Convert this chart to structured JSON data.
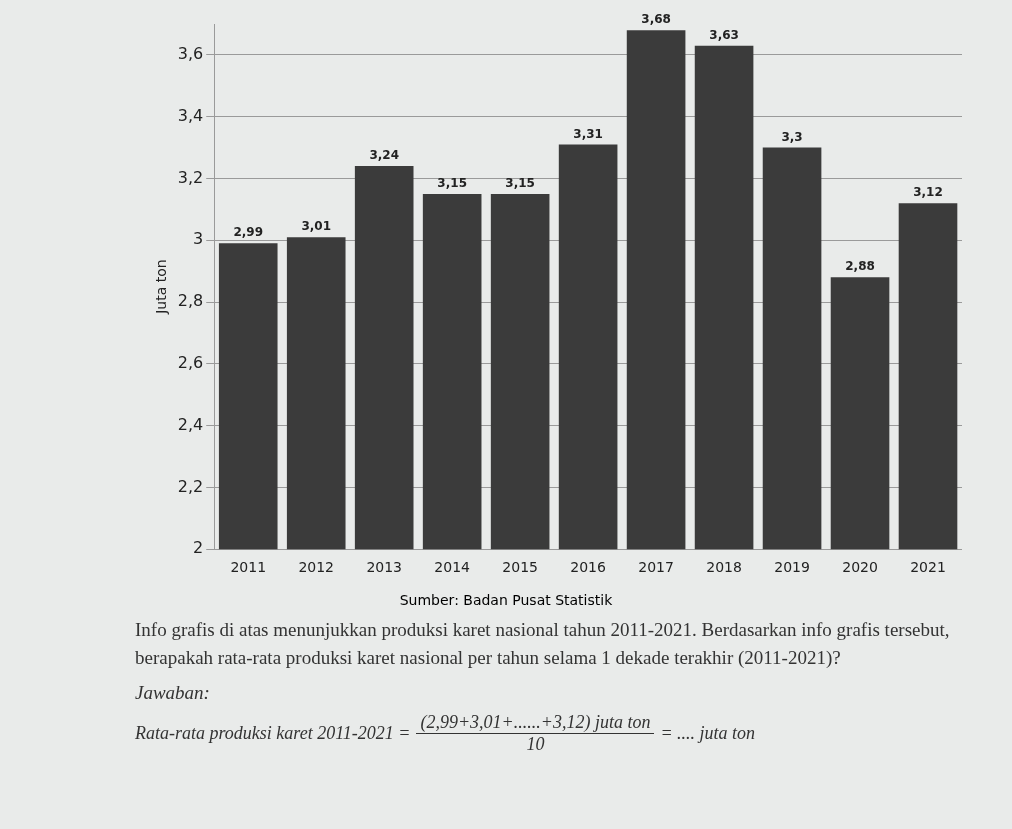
{
  "chart_data": {
    "type": "bar",
    "ylabel": "Juta ton",
    "categories": [
      "2011",
      "2012",
      "2013",
      "2014",
      "2015",
      "2016",
      "2017",
      "2018",
      "2019",
      "2020",
      "2021"
    ],
    "values": [
      2.99,
      3.01,
      3.24,
      3.15,
      3.15,
      3.31,
      3.68,
      3.63,
      3.3,
      2.88,
      3.12
    ],
    "value_labels": [
      "2,99",
      "3,01",
      "3,24",
      "3,15",
      "3,15",
      "3,31",
      "3,68",
      "3,63",
      "3,3",
      "2,88",
      "3,12"
    ],
    "color": "#3b3b3b",
    "ylim": [
      2,
      3.7
    ],
    "yticks": [
      2,
      {
        "value": 2.2,
        "label": "2,2"
      },
      {
        "value": 2.4,
        "label": "2,4"
      },
      {
        "value": 2.6,
        "label": "2,6"
      },
      {
        "value": 2.8,
        "label": "2,8"
      },
      3,
      {
        "value": 3.2,
        "label": "3,2"
      },
      {
        "value": 3.4,
        "label": "3,4"
      },
      {
        "value": 3.6,
        "label": "3,6"
      }
    ],
    "grid": "y",
    "legend": false,
    "annotations": [
      "Sumber: Badan Pusat Statistik",
      "Info grafis di atas menunjukkan produksi karet nasional tahun 2011-2021. Berdasarkan info grafis tersebut, berapakah rata-rata produksi karet nasional per tahun selama 1 dekade terakhir (2011-2021)?",
      "Jawaban:",
      "Rata-rata produksi karet 2011-2021 =",
      "(2,99+3,01+......+3,12) juta ton",
      "10",
      "= .... juta ton"
    ]
  }
}
